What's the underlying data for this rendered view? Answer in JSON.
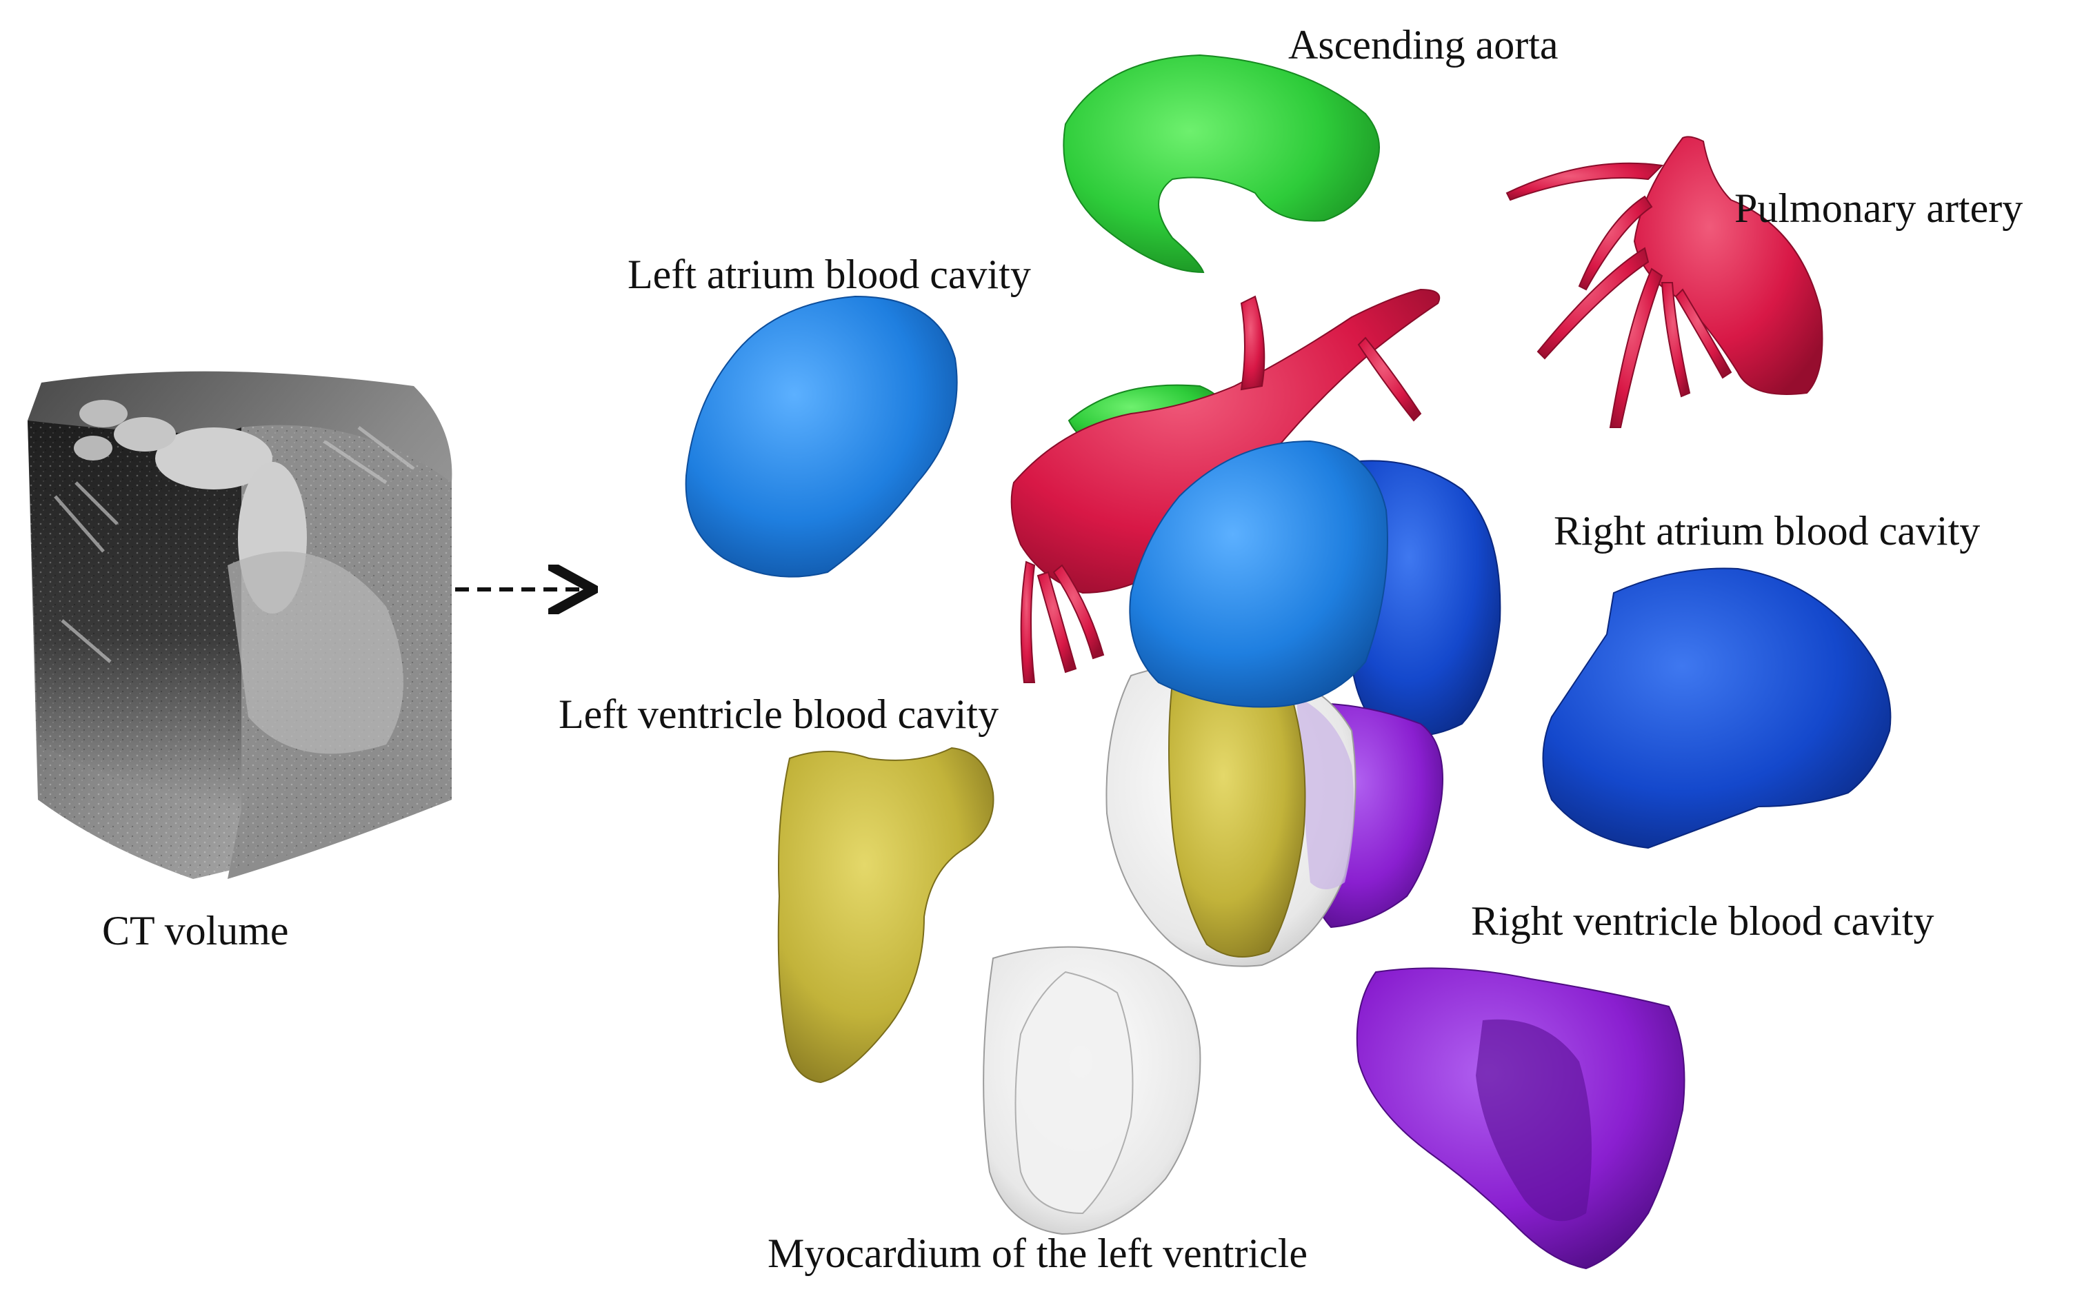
{
  "figure": {
    "source_label": "CT volume",
    "structures": [
      {
        "id": "aorta",
        "label": "Ascending aorta",
        "color": "#2ecc3a"
      },
      {
        "id": "pulmonary",
        "label": "Pulmonary artery",
        "color": "#d81846"
      },
      {
        "id": "la",
        "label": "Left atrium blood cavity",
        "color": "#1f7fe0"
      },
      {
        "id": "ra",
        "label": "Right atrium blood cavity",
        "color": "#1448cc"
      },
      {
        "id": "lv",
        "label": "Left ventricle blood cavity",
        "color": "#c2b33a"
      },
      {
        "id": "rv",
        "label": "Right ventricle blood cavity",
        "color": "#8a1fd0"
      },
      {
        "id": "myo",
        "label": "Myocardium of the left ventricle",
        "color": "#e6e6e6"
      }
    ]
  }
}
